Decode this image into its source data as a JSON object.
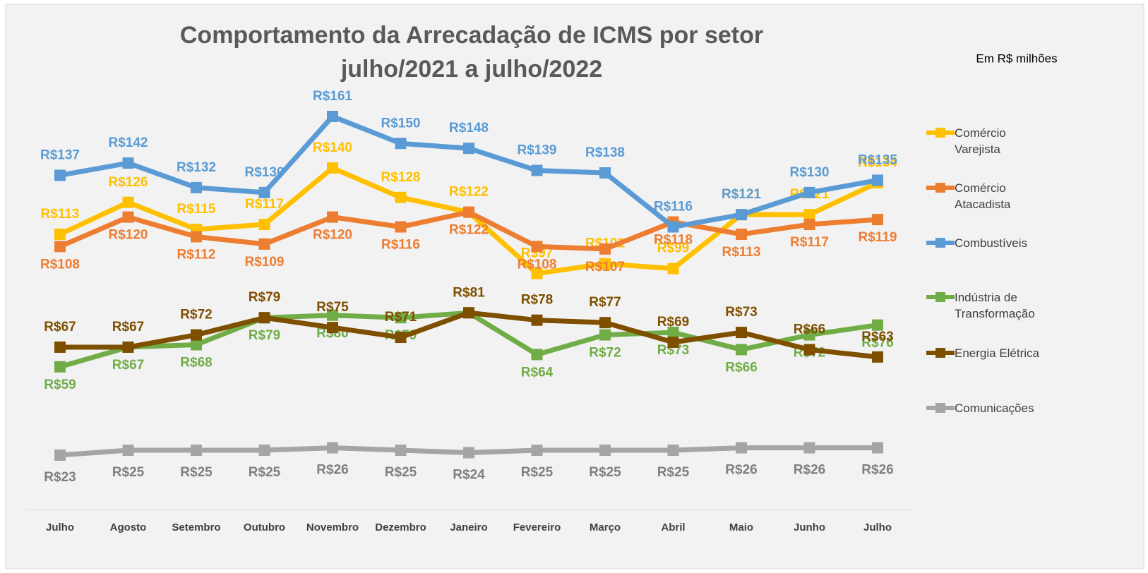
{
  "chart_data": {
    "type": "line",
    "title": "Comportamento da Arrecadação de ICMS por setor",
    "subtitle": "julho/2021 a julho/2022",
    "note": "Em R$ milhões",
    "categories": [
      "Julho",
      "Agosto",
      "Setembro",
      "Outubro",
      "Novembro",
      "Dezembro",
      "Janeiro",
      "Fevereiro",
      "Março",
      "Abril",
      "Maio",
      "Junho",
      "Julho"
    ],
    "series": [
      {
        "name": "Comércio Varejista",
        "color": "#FFC000",
        "values": [
          113,
          126,
          115,
          117,
          140,
          128,
          122,
          97,
          101,
          99,
          121,
          121,
          134
        ],
        "value_labels": [
          "R$113",
          "R$126",
          "R$115",
          "R$117",
          "R$140",
          "R$128",
          "R$122",
          "R$97",
          "R$101",
          "R$99",
          "R$121",
          "R$121",
          "R$134"
        ]
      },
      {
        "name": "Comércio Atacadista",
        "color": "#ED7D31",
        "values": [
          108,
          120,
          112,
          109,
          120,
          116,
          122,
          108,
          107,
          118,
          113,
          117,
          119
        ],
        "value_labels": [
          "R$108",
          "R$120",
          "R$112",
          "R$109",
          "R$120",
          "R$116",
          "R$122",
          "R$108",
          "R$107",
          "R$118",
          "R$113",
          "R$117",
          "R$119"
        ]
      },
      {
        "name": "Combustíveis",
        "color": "#5B9BD5",
        "values": [
          137,
          142,
          132,
          130,
          161,
          150,
          148,
          139,
          138,
          116,
          121,
          130,
          135
        ],
        "value_labels": [
          "R$137",
          "R$142",
          "R$132",
          "R$130",
          "R$161",
          "R$150",
          "R$148",
          "R$139",
          "R$138",
          "R$116",
          "R$121",
          "R$130",
          "R$135"
        ]
      },
      {
        "name": "Indústria de Transformação",
        "color": "#70AD47",
        "values": [
          59,
          67,
          68,
          79,
          80,
          79,
          81,
          64,
          72,
          73,
          66,
          72,
          76
        ],
        "value_labels": [
          "R$59",
          "R$67",
          "R$68",
          "R$79",
          "R$80",
          "R$79",
          null,
          "R$64",
          "R$72",
          "R$73",
          "R$66",
          "R$72",
          "R$76"
        ]
      },
      {
        "name": "Energia Elétrica",
        "color": "#7F4F00",
        "values": [
          67,
          67,
          72,
          79,
          75,
          71,
          81,
          78,
          77,
          69,
          73,
          66,
          63
        ],
        "value_labels": [
          "R$67",
          "R$67",
          "R$72",
          "R$79",
          "R$75",
          "R$71",
          "R$81",
          "R$78",
          "R$77",
          "R$69",
          "R$73",
          "R$66",
          "R$63"
        ]
      },
      {
        "name": "Comunicações",
        "color": "#A5A5A5",
        "values": [
          23,
          25,
          25,
          25,
          26,
          25,
          24,
          25,
          25,
          25,
          26,
          26,
          26
        ],
        "value_labels": [
          "R$23",
          "R$25",
          "R$25",
          "R$25",
          "R$26",
          "R$25",
          "R$24",
          "R$25",
          "R$25",
          "R$25",
          "R$26",
          "R$26",
          "R$26"
        ]
      }
    ]
  }
}
